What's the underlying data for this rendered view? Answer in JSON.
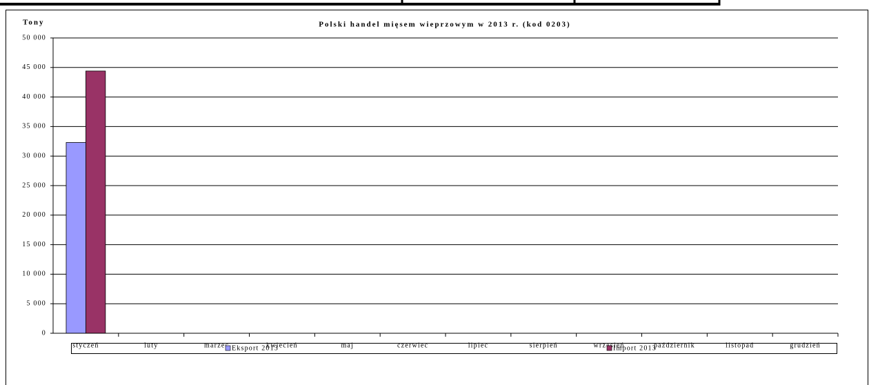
{
  "chart_data": {
    "type": "bar",
    "title": "Polski handel mięsem wieprzowym w 2013 r. (kod 0203)",
    "y_label": "Tony",
    "categories": [
      "styczeń",
      "luty",
      "marzec",
      "kwiecień",
      "maj",
      "czerwiec",
      "lipiec",
      "sierpień",
      "wrzesień",
      "październik",
      "listopad",
      "grudzień"
    ],
    "series": [
      {
        "name": "Eksport 2013",
        "color": "#9999ff",
        "values": [
          32300,
          null,
          null,
          null,
          null,
          null,
          null,
          null,
          null,
          null,
          null,
          null
        ]
      },
      {
        "name": "Import 2013",
        "color": "#993366",
        "values": [
          44400,
          null,
          null,
          null,
          null,
          null,
          null,
          null,
          null,
          null,
          null,
          null
        ]
      }
    ],
    "ylim": [
      0,
      50000
    ],
    "yticks": [
      0,
      {
        "value": 5000,
        "label": "5 000"
      },
      {
        "value": 10000,
        "label": "10 000"
      },
      {
        "value": 15000,
        "label": "15 000"
      },
      {
        "value": 20000,
        "label": "20 000"
      },
      {
        "value": 25000,
        "label": "25 000"
      },
      {
        "value": 30000,
        "label": "30 000"
      },
      {
        "value": 35000,
        "label": "35 000"
      },
      {
        "value": 40000,
        "label": "40 000"
      },
      {
        "value": 45000,
        "label": "45 000"
      },
      {
        "value": 50000,
        "label": "50 000"
      }
    ],
    "grid": true,
    "legend": "bottom"
  }
}
